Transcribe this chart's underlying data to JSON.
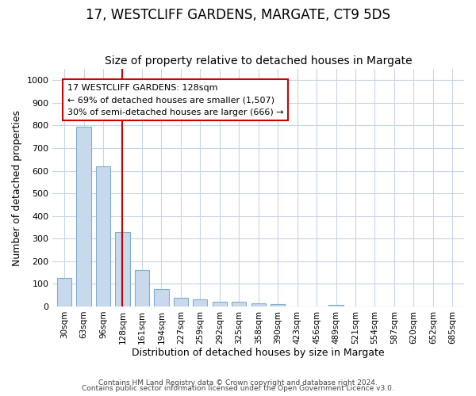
{
  "title": "17, WESTCLIFF GARDENS, MARGATE, CT9 5DS",
  "subtitle": "Size of property relative to detached houses in Margate",
  "xlabel": "Distribution of detached houses by size in Margate",
  "ylabel": "Number of detached properties",
  "annotation_line1": "17 WESTCLIFF GARDENS: 128sqm",
  "annotation_line2": "← 69% of detached houses are smaller (1,507)",
  "annotation_line3": "30% of semi-detached houses are larger (666) →",
  "bin_labels": [
    "30sqm",
    "63sqm",
    "96sqm",
    "128sqm",
    "161sqm",
    "194sqm",
    "227sqm",
    "259sqm",
    "292sqm",
    "325sqm",
    "358sqm",
    "390sqm",
    "423sqm",
    "456sqm",
    "489sqm",
    "521sqm",
    "554sqm",
    "587sqm",
    "620sqm",
    "652sqm",
    "685sqm"
  ],
  "bar_values": [
    125,
    795,
    620,
    330,
    160,
    78,
    40,
    30,
    22,
    22,
    15,
    10,
    0,
    0,
    8,
    0,
    0,
    0,
    0,
    0,
    0
  ],
  "bar_color": "#c9d9ec",
  "bar_edge_color": "#7faece",
  "vline_color": "#cc0000",
  "vline_x_index": 3,
  "ylim": [
    0,
    1050
  ],
  "yticks": [
    0,
    100,
    200,
    300,
    400,
    500,
    600,
    700,
    800,
    900,
    1000
  ],
  "grid_color": "#c8d4e8",
  "footer_line1": "Contains HM Land Registry data © Crown copyright and database right 2024.",
  "footer_line2": "Contains public sector information licensed under the Open Government Licence v3.0.",
  "background_color": "#ffffff",
  "annotation_box_color": "#cc0000",
  "title_fontsize": 12,
  "subtitle_fontsize": 10,
  "ylabel_fontsize": 9,
  "xlabel_fontsize": 9
}
